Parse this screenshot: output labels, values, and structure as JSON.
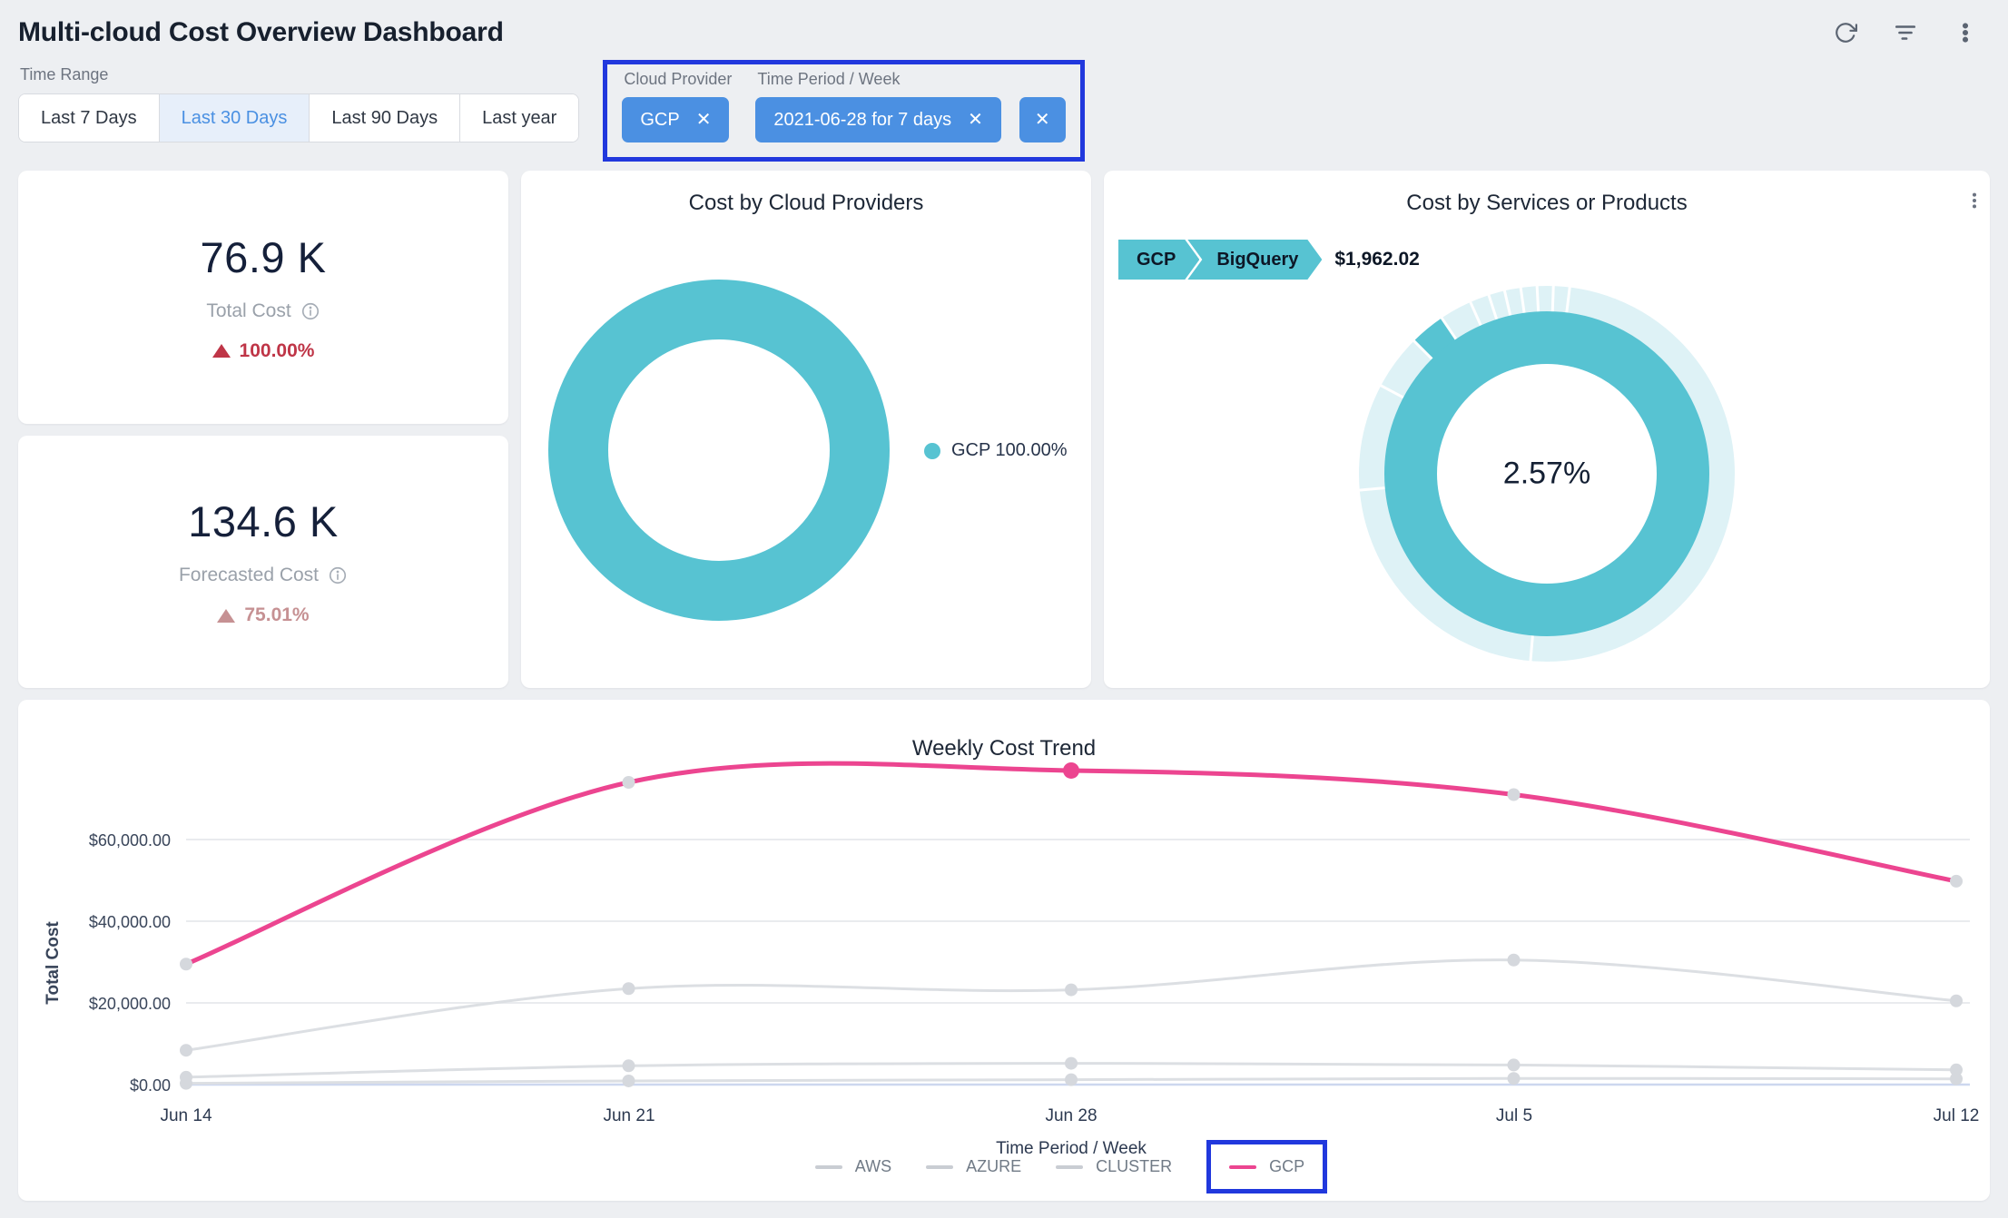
{
  "header": {
    "title": "Multi-cloud Cost Overview Dashboard",
    "icons": [
      "refresh-icon",
      "filter-icon",
      "kebab-menu-icon"
    ]
  },
  "filters": {
    "time_range": {
      "label": "Time Range",
      "options": [
        "Last 7 Days",
        "Last 30 Days",
        "Last 90 Days",
        "Last year"
      ],
      "selected": "Last 30 Days"
    },
    "cloud_provider": {
      "label": "Cloud Provider",
      "value": "GCP"
    },
    "time_period": {
      "label": "Time Period / Week",
      "value": "2021-06-28 for 7 days"
    },
    "close_glyph": "✕"
  },
  "stats": {
    "total_cost": {
      "value": "76.9 K",
      "label": "Total Cost",
      "delta": "100.00%",
      "delta_direction": "up"
    },
    "forecasted_cost": {
      "value": "134.6 K",
      "label": "Forecasted Cost",
      "delta": "75.01%",
      "delta_direction": "up"
    }
  },
  "chart_data": [
    {
      "type": "pie",
      "donut": true,
      "title": "Cost by Cloud Providers",
      "slices": [
        {
          "label": "GCP",
          "percent": 100.0
        }
      ],
      "legend_label": "GCP 100.00%",
      "legend_position": "right"
    },
    {
      "type": "pie",
      "donut": true,
      "title": "Cost by Services or Products",
      "center_label": "2.57%",
      "tooltip": {
        "path": [
          "GCP",
          "BigQuery"
        ],
        "value": "$1,962.02"
      },
      "highlight": {
        "label": "BigQuery",
        "percent": 2.57,
        "start_deg": -45,
        "end_deg": -34
      },
      "separators_deg": [
        -95,
        -62,
        -45,
        -34,
        -24,
        -18,
        -13,
        -8,
        -3,
        2,
        7,
        185
      ],
      "rings": {
        "outer_radius": 192,
        "outer_width": 30,
        "inner_radius": 150,
        "inner_width": 58
      }
    },
    {
      "type": "line",
      "title": "Weekly Cost Trend",
      "xlabel": "Time Period / Week",
      "ylabel": "Total Cost",
      "x": [
        "Jun 14",
        "Jun 21",
        "Jun 28",
        "Jul 5",
        "Jul 12"
      ],
      "yticks": [
        "$0.00",
        "$20,000.00",
        "$40,000.00",
        "$60,000.00"
      ],
      "ylim": [
        0,
        80000
      ],
      "grid": true,
      "legend_position": "bottom",
      "series": [
        {
          "name": "AWS",
          "values": [
            8400,
            23500,
            23200,
            30500,
            20500
          ]
        },
        {
          "name": "AZURE",
          "values": [
            1800,
            4600,
            5200,
            4800,
            3600
          ]
        },
        {
          "name": "CLUSTER",
          "values": [
            300,
            900,
            1200,
            1500,
            1400
          ]
        },
        {
          "name": "GCP",
          "values": [
            29500,
            74000,
            76900,
            71000,
            49800
          ]
        }
      ],
      "highlight_point": {
        "series": "GCP",
        "x": "Jun 28"
      }
    }
  ],
  "colors": {
    "teal": "#57c3d2",
    "pale_teal": "#def2f6",
    "pink": "#ec4590",
    "chip_blue": "#4b90e2",
    "annotation_blue": "#2138dd",
    "red": "#bf3547",
    "muted_red": "#c69193",
    "gray_line": "#dcdfe3",
    "marker_gray": "#d5d8dd"
  }
}
